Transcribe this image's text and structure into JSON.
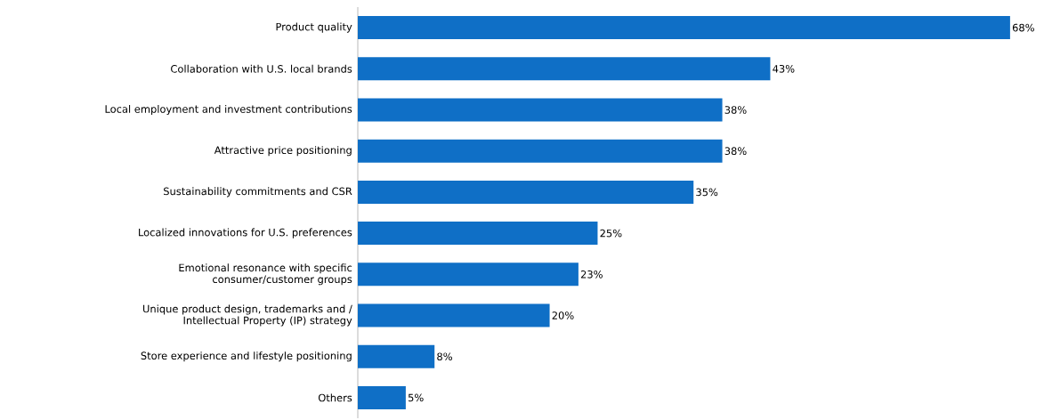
{
  "chart_data": {
    "type": "bar",
    "orientation": "horizontal",
    "categories": [
      "Product quality",
      "Collaboration with U.S. local brands",
      "Local employment and investment contributions",
      "Attractive price positioning",
      "Sustainability commitments and CSR",
      "Localized innovations for U.S. preferences",
      "Emotional resonance with specific consumer/customer groups",
      "Unique product design, trademarks and / Intellectual Property (IP) strategy",
      "Store experience and lifestyle positioning",
      "Others"
    ],
    "values": [
      68,
      43,
      38,
      38,
      35,
      25,
      23,
      20,
      8,
      5
    ],
    "value_labels": [
      "68%",
      "43%",
      "38%",
      "38%",
      "35%",
      "25%",
      "23%",
      "20%",
      "8%",
      "5%"
    ],
    "color": "#0f6fc6"
  }
}
